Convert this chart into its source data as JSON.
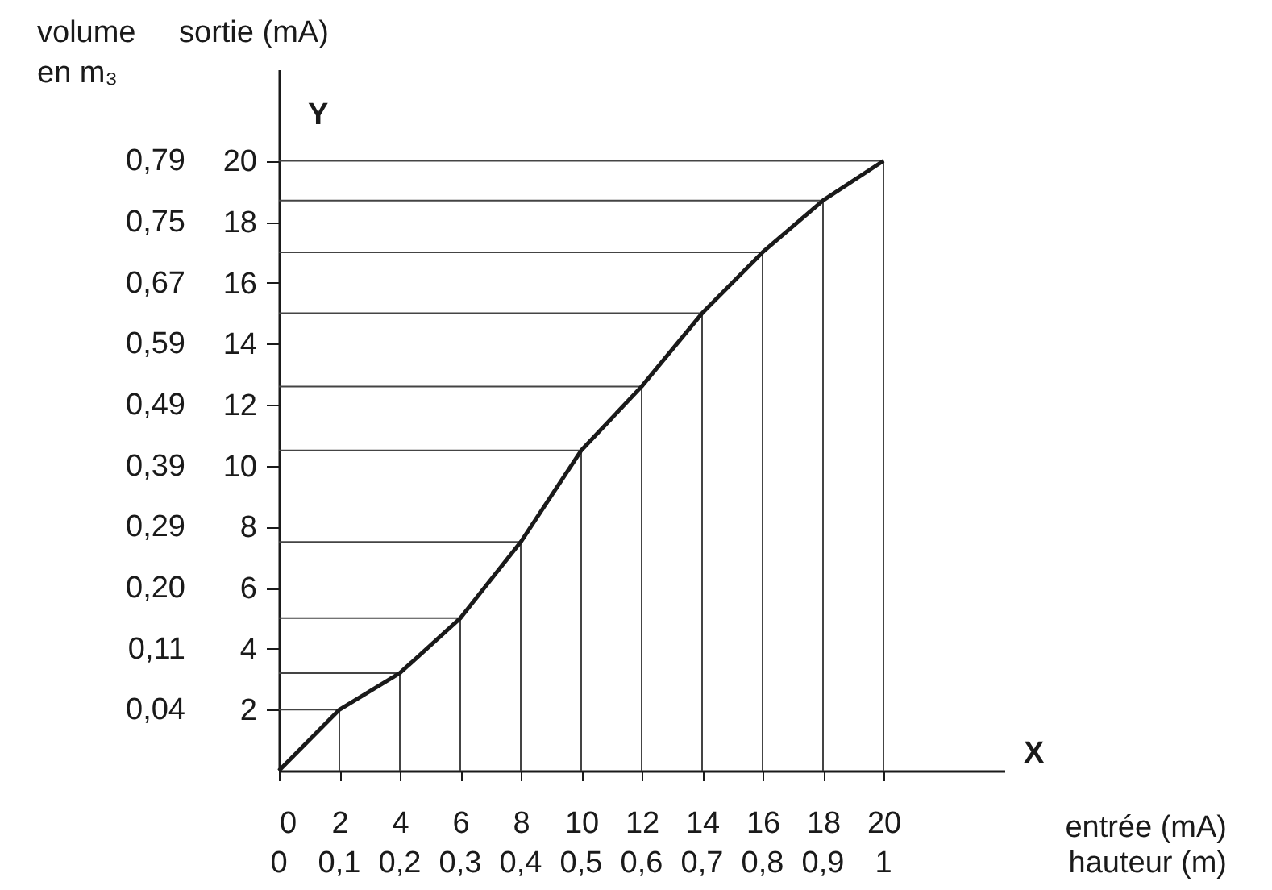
{
  "chart_data": {
    "type": "line",
    "xlabel": "entrée (mA)",
    "x2label": "hauteur (m)",
    "ylabel": "sortie (mA)",
    "y2label": "volume\nen m₃",
    "annotations": [
      "Y",
      "X",
      "0,04",
      "0,11",
      "0,20",
      "0,29",
      "0,39",
      "0,49",
      "0,59",
      "0,67",
      "0,75",
      "0,79"
    ],
    "marker": "none",
    "line_style": "solid",
    "xlim": [
      0,
      24
    ],
    "ylim": [
      0,
      23
    ],
    "x2lim": [
      0,
      1.2
    ],
    "xticks": [
      0,
      2,
      4,
      6,
      8,
      10,
      12,
      14,
      16,
      18,
      20
    ],
    "x2ticks": [
      0,
      {
        "value": 0.1,
        "label": "0,1"
      },
      {
        "value": 0.2,
        "label": "0,2"
      },
      {
        "value": 0.3,
        "label": "0,3"
      },
      {
        "value": 0.4,
        "label": "0,4"
      },
      {
        "value": 0.5,
        "label": "0,5"
      },
      {
        "value": 0.6,
        "label": "0,6"
      },
      {
        "value": 0.7,
        "label": "0,7"
      },
      {
        "value": 0.8,
        "label": "0,8"
      },
      {
        "value": 0.9,
        "label": "0,9"
      },
      1
    ],
    "yticks": [
      2,
      4,
      6,
      8,
      10,
      12,
      14,
      16,
      18,
      20
    ],
    "series": [
      {
        "color": "#1a1a1a",
        "x": [
          0,
          2,
          4,
          6,
          8,
          10,
          12,
          14,
          16,
          18,
          20
        ],
        "values": [
          0,
          2,
          3.2,
          5,
          7.5,
          10.5,
          12.6,
          15,
          17,
          18.7,
          20
        ]
      },
      {
        "color": "#444444",
        "x": [
          0,
          2
        ],
        "values": [
          2,
          2
        ]
      },
      {
        "color": "#444444",
        "x": [
          0,
          4
        ],
        "values": [
          3.2,
          3.2
        ]
      },
      {
        "color": "#444444",
        "x": [
          0,
          6
        ],
        "values": [
          5,
          5
        ]
      },
      {
        "color": "#444444",
        "x": [
          0,
          8
        ],
        "values": [
          7.5,
          7.5
        ]
      },
      {
        "color": "#444444",
        "x": [
          0,
          10
        ],
        "values": [
          10.5,
          10.5
        ]
      },
      {
        "color": "#444444",
        "x": [
          0,
          12
        ],
        "values": [
          12.6,
          12.6
        ]
      },
      {
        "color": "#444444",
        "x": [
          0,
          14
        ],
        "values": [
          15,
          15
        ]
      },
      {
        "color": "#444444",
        "x": [
          0,
          16
        ],
        "values": [
          17,
          17
        ]
      },
      {
        "color": "#444444",
        "x": [
          0,
          18
        ],
        "values": [
          18.7,
          18.7
        ]
      },
      {
        "color": "#444444",
        "x": [
          0,
          20
        ],
        "values": [
          20,
          20
        ]
      },
      {
        "color": "#444444",
        "x": [
          2,
          2
        ],
        "values": [
          0,
          2
        ]
      },
      {
        "color": "#444444",
        "x": [
          4,
          4
        ],
        "values": [
          0,
          3.2
        ]
      },
      {
        "color": "#444444",
        "x": [
          6,
          6
        ],
        "values": [
          0,
          5
        ]
      },
      {
        "color": "#444444",
        "x": [
          8,
          8
        ],
        "values": [
          0,
          7.5
        ]
      },
      {
        "color": "#444444",
        "x": [
          10,
          10
        ],
        "values": [
          0,
          10.5
        ]
      },
      {
        "color": "#444444",
        "x": [
          12,
          12
        ],
        "values": [
          0,
          12.6
        ]
      },
      {
        "color": "#444444",
        "x": [
          14,
          14
        ],
        "values": [
          0,
          15
        ]
      },
      {
        "color": "#444444",
        "x": [
          16,
          16
        ],
        "values": [
          0,
          17
        ]
      },
      {
        "color": "#444444",
        "x": [
          18,
          18
        ],
        "values": [
          0,
          18.7
        ]
      },
      {
        "color": "#444444",
        "x": [
          20,
          20
        ],
        "values": [
          0,
          20
        ]
      }
    ]
  }
}
